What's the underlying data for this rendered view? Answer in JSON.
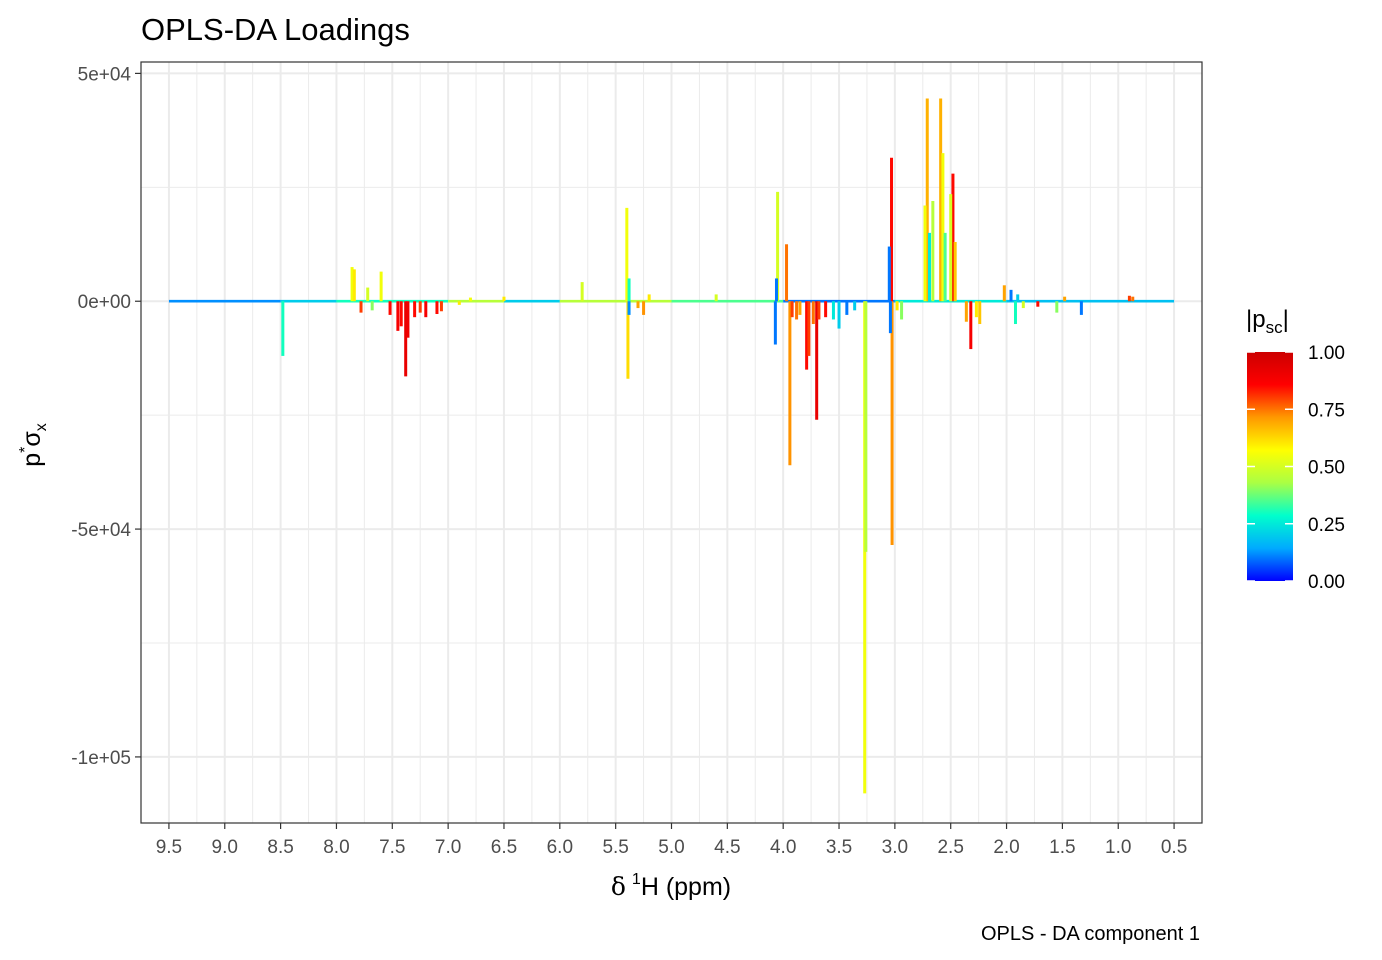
{
  "chart_data": {
    "type": "line",
    "title": "OPLS-DA Loadings",
    "caption": "OPLS - DA component 1",
    "xlabel_symbol": "δ",
    "xlabel_sup": "1",
    "xlabel_text": "H (ppm)",
    "ylabel_base": "p",
    "ylabel_sup": "*",
    "ylabel_sigma": "σ",
    "ylabel_sub": "x",
    "x_reversed": true,
    "xlim": [
      9.75,
      0.25
    ],
    "ylim": [
      -114500,
      52500
    ],
    "x_ticks": [
      9.5,
      9.0,
      8.5,
      8.0,
      7.5,
      7.0,
      6.5,
      6.0,
      5.5,
      5.0,
      4.5,
      4.0,
      3.5,
      3.0,
      2.5,
      2.0,
      1.5,
      1.0,
      0.5
    ],
    "x_tick_labels": [
      "9.5",
      "9.0",
      "8.5",
      "8.0",
      "7.5",
      "7.0",
      "6.5",
      "6.0",
      "5.5",
      "5.0",
      "4.5",
      "4.0",
      "3.5",
      "3.0",
      "2.5",
      "2.0",
      "1.5",
      "1.0",
      "0.5"
    ],
    "y_ticks": [
      50000,
      0,
      -50000,
      -100000
    ],
    "y_tick_labels": [
      "5e+04",
      "0e+00",
      "-5e+04",
      "-1e+05"
    ],
    "grid": true,
    "legend": {
      "title_base": "|p",
      "title_sub": "sc",
      "title_end": "|",
      "placement": "right",
      "range": [
        0,
        1
      ],
      "ticks": [
        1.0,
        0.75,
        0.5,
        0.25,
        0.0
      ],
      "tick_labels": [
        "1.00",
        "0.75",
        "0.50",
        "0.25",
        "0.00"
      ],
      "colormap": [
        "#0000ff",
        "#00aaff",
        "#00ffcc",
        "#aaff44",
        "#ffff00",
        "#ff9900",
        "#ff0000",
        "#cc0000"
      ]
    },
    "color_variable": "|p_sc|",
    "baseline_segments": [
      {
        "x0": 9.5,
        "x1": 8.5,
        "c": 0.12
      },
      {
        "x0": 8.5,
        "x1": 8.0,
        "c": 0.2
      },
      {
        "x0": 8.0,
        "x1": 7.0,
        "c": 0.3
      },
      {
        "x0": 7.0,
        "x1": 6.5,
        "c": 0.45
      },
      {
        "x0": 6.5,
        "x1": 6.0,
        "c": 0.2
      },
      {
        "x0": 6.0,
        "x1": 5.0,
        "c": 0.45
      },
      {
        "x0": 5.0,
        "x1": 4.0,
        "c": 0.35
      },
      {
        "x0": 4.0,
        "x1": 3.0,
        "c": 0.1
      },
      {
        "x0": 3.0,
        "x1": 2.0,
        "c": 0.25
      },
      {
        "x0": 2.0,
        "x1": 0.5,
        "c": 0.18
      }
    ],
    "peaks": [
      {
        "x": 8.48,
        "y": -12000,
        "c": 0.3
      },
      {
        "x": 7.86,
        "y": 7500,
        "c": 0.55
      },
      {
        "x": 7.84,
        "y": 7000,
        "c": 0.6
      },
      {
        "x": 7.78,
        "y": -2500,
        "c": 0.8
      },
      {
        "x": 7.72,
        "y": 3000,
        "c": 0.5
      },
      {
        "x": 7.68,
        "y": -2000,
        "c": 0.4
      },
      {
        "x": 7.6,
        "y": 6500,
        "c": 0.55
      },
      {
        "x": 7.52,
        "y": -3000,
        "c": 0.85
      },
      {
        "x": 7.45,
        "y": -6500,
        "c": 0.88
      },
      {
        "x": 7.42,
        "y": -5500,
        "c": 0.85
      },
      {
        "x": 7.38,
        "y": -16500,
        "c": 0.92
      },
      {
        "x": 7.36,
        "y": -8000,
        "c": 0.9
      },
      {
        "x": 7.3,
        "y": -3500,
        "c": 0.85
      },
      {
        "x": 7.25,
        "y": -2500,
        "c": 0.8
      },
      {
        "x": 7.2,
        "y": -3500,
        "c": 0.88
      },
      {
        "x": 7.1,
        "y": -2800,
        "c": 0.85
      },
      {
        "x": 7.06,
        "y": -2200,
        "c": 0.8
      },
      {
        "x": 6.9,
        "y": -800,
        "c": 0.6
      },
      {
        "x": 6.8,
        "y": 800,
        "c": 0.55
      },
      {
        "x": 6.5,
        "y": 1000,
        "c": 0.6
      },
      {
        "x": 5.8,
        "y": 4200,
        "c": 0.5
      },
      {
        "x": 5.4,
        "y": 20500,
        "c": 0.55
      },
      {
        "x": 5.39,
        "y": -17000,
        "c": 0.62
      },
      {
        "x": 5.38,
        "y": 5000,
        "c": 0.3
      },
      {
        "x": 5.38,
        "y": -3000,
        "c": 0.12
      },
      {
        "x": 5.3,
        "y": -1500,
        "c": 0.7
      },
      {
        "x": 5.25,
        "y": -3000,
        "c": 0.72
      },
      {
        "x": 5.2,
        "y": 1500,
        "c": 0.6
      },
      {
        "x": 4.6,
        "y": 1500,
        "c": 0.5
      },
      {
        "x": 4.05,
        "y": 24000,
        "c": 0.5
      },
      {
        "x": 4.06,
        "y": 5000,
        "c": 0.1
      },
      {
        "x": 4.07,
        "y": -9500,
        "c": 0.1
      },
      {
        "x": 3.97,
        "y": 12500,
        "c": 0.75
      },
      {
        "x": 3.94,
        "y": -36000,
        "c": 0.72
      },
      {
        "x": 3.92,
        "y": -3500,
        "c": 0.8
      },
      {
        "x": 3.88,
        "y": -4000,
        "c": 0.75
      },
      {
        "x": 3.85,
        "y": -3000,
        "c": 0.7
      },
      {
        "x": 3.79,
        "y": -15000,
        "c": 0.85
      },
      {
        "x": 3.77,
        "y": -12000,
        "c": 0.8
      },
      {
        "x": 3.73,
        "y": -5000,
        "c": 0.75
      },
      {
        "x": 3.7,
        "y": -26000,
        "c": 0.92
      },
      {
        "x": 3.68,
        "y": -4000,
        "c": 0.8
      },
      {
        "x": 3.62,
        "y": -3500,
        "c": 0.85
      },
      {
        "x": 3.55,
        "y": -4000,
        "c": 0.25
      },
      {
        "x": 3.5,
        "y": -6000,
        "c": 0.2
      },
      {
        "x": 3.43,
        "y": -3000,
        "c": 0.1
      },
      {
        "x": 3.36,
        "y": -2000,
        "c": 0.2
      },
      {
        "x": 3.27,
        "y": -108000,
        "c": 0.55
      },
      {
        "x": 3.26,
        "y": -55000,
        "c": 0.45
      },
      {
        "x": 3.05,
        "y": 12000,
        "c": 0.1
      },
      {
        "x": 3.04,
        "y": -7000,
        "c": 0.1
      },
      {
        "x": 3.03,
        "y": 31500,
        "c": 0.85
      },
      {
        "x": 3.025,
        "y": -53500,
        "c": 0.72
      },
      {
        "x": 2.98,
        "y": -2000,
        "c": 0.6
      },
      {
        "x": 2.94,
        "y": -4000,
        "c": 0.4
      },
      {
        "x": 2.73,
        "y": 21000,
        "c": 0.55
      },
      {
        "x": 2.71,
        "y": 44500,
        "c": 0.68
      },
      {
        "x": 2.69,
        "y": 15000,
        "c": 0.25
      },
      {
        "x": 2.66,
        "y": 22000,
        "c": 0.45
      },
      {
        "x": 2.59,
        "y": 44500,
        "c": 0.68
      },
      {
        "x": 2.57,
        "y": 32500,
        "c": 0.55
      },
      {
        "x": 2.55,
        "y": 15000,
        "c": 0.35
      },
      {
        "x": 2.5,
        "y": 23500,
        "c": 0.5
      },
      {
        "x": 2.48,
        "y": 28000,
        "c": 0.85
      },
      {
        "x": 2.46,
        "y": 13000,
        "c": 0.65
      },
      {
        "x": 2.36,
        "y": -4500,
        "c": 0.7
      },
      {
        "x": 2.32,
        "y": -10500,
        "c": 0.88
      },
      {
        "x": 2.27,
        "y": -3500,
        "c": 0.6
      },
      {
        "x": 2.24,
        "y": -5000,
        "c": 0.65
      },
      {
        "x": 2.02,
        "y": 3500,
        "c": 0.7
      },
      {
        "x": 1.96,
        "y": 2500,
        "c": 0.1
      },
      {
        "x": 1.92,
        "y": -5000,
        "c": 0.3
      },
      {
        "x": 1.9,
        "y": 1500,
        "c": 0.2
      },
      {
        "x": 1.85,
        "y": -1500,
        "c": 0.5
      },
      {
        "x": 1.72,
        "y": -1200,
        "c": 0.85
      },
      {
        "x": 1.55,
        "y": -2500,
        "c": 0.4
      },
      {
        "x": 1.48,
        "y": 1000,
        "c": 0.7
      },
      {
        "x": 1.33,
        "y": -3000,
        "c": 0.1
      },
      {
        "x": 0.9,
        "y": 1200,
        "c": 0.8
      },
      {
        "x": 0.87,
        "y": 1000,
        "c": 0.75
      }
    ]
  }
}
